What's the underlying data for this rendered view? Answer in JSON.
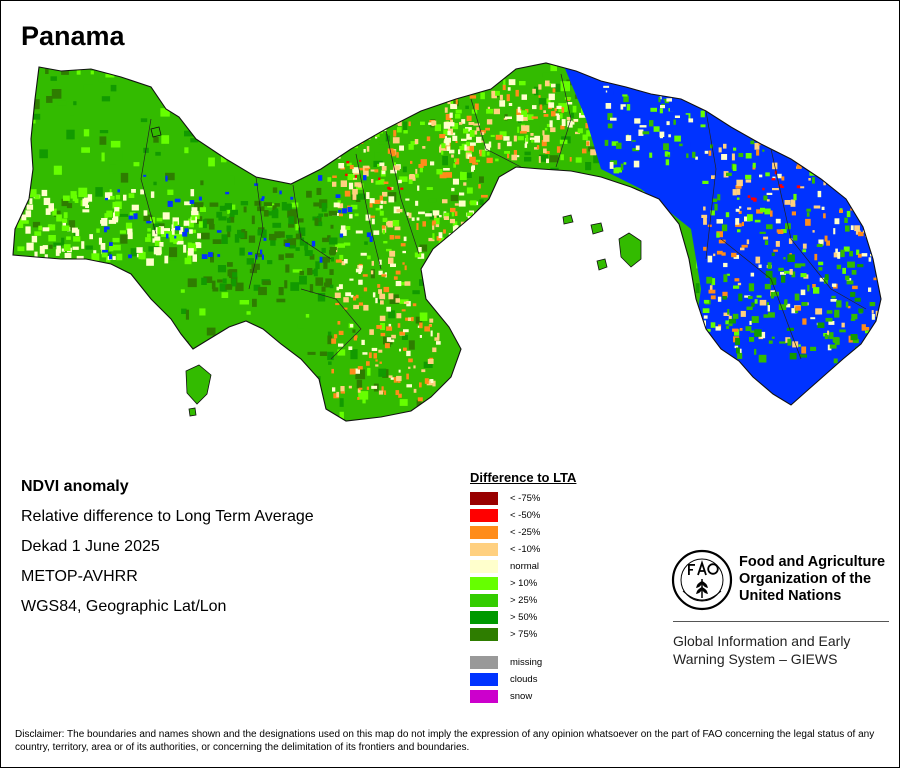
{
  "title": "Panama",
  "info": {
    "line1": "NDVI anomaly",
    "line2": "Relative difference to Long Term Average",
    "line3": "Dekad 1 June 2025",
    "line4": "METOP-AVHRR",
    "line5": "WGS84, Geographic Lat/Lon"
  },
  "legend": {
    "title": "Difference to LTA",
    "items": [
      {
        "label": "< -75%",
        "color": "#990000"
      },
      {
        "label": "< -50%",
        "color": "#ff0000"
      },
      {
        "label": "< -25%",
        "color": "#ff8c1a"
      },
      {
        "label": "< -10%",
        "color": "#ffd080"
      },
      {
        "label": "normal",
        "color": "#ffffcc"
      },
      {
        "label": "> 10%",
        "color": "#66ff00"
      },
      {
        "label": "> 25%",
        "color": "#33cc00"
      },
      {
        "label": "> 50%",
        "color": "#009900"
      },
      {
        "label": "> 75%",
        "color": "#2e7d00"
      }
    ],
    "extra": [
      {
        "label": "missing",
        "color": "#999999"
      },
      {
        "label": "clouds",
        "color": "#0033ff"
      },
      {
        "label": "snow",
        "color": "#cc00cc"
      }
    ]
  },
  "fao": {
    "name_line1": "Food and Agriculture",
    "name_line2": "Organization of the",
    "name_line3": "United Nations",
    "giews_line1": "Global Information and Early",
    "giews_line2": "Warning System – GIEWS"
  },
  "disclaimer": "Disclaimer: The boundaries and names shown and the designations used on this map do not imply the expression of any opinion whatsoever on the part of FAO concerning the legal status of any country, territory, area or of its authorities, or concerning the delimitation of its frontiers and boundaries."
}
